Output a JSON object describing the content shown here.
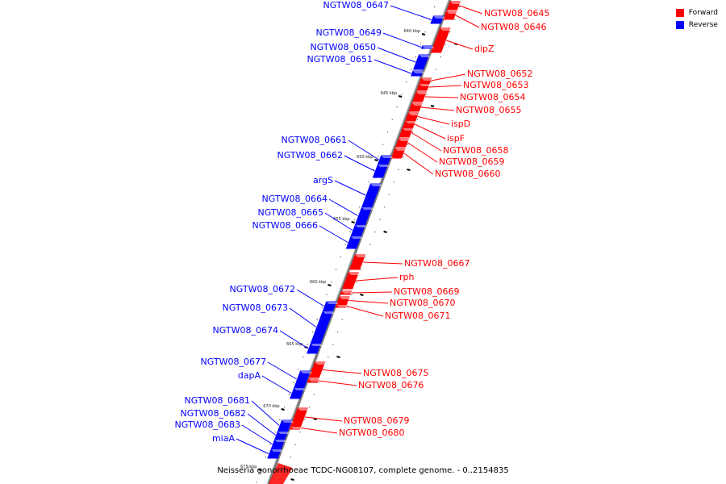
{
  "legend": [
    {
      "label": "Forward",
      "color": "#ff0000"
    },
    {
      "label": "Reverse",
      "color": "#0000ff"
    }
  ],
  "footer_text": "Neisseria gonorrhoeae TCDC-NG08107, complete genome. - 0..2154835",
  "axis_labels": [
    "640 kbp",
    "645 kbp",
    "650 kbp",
    "655 kbp",
    "660 kbp",
    "665 kbp",
    "670 kbp",
    "675 kbp"
  ],
  "genes_forward": [
    "NGTW08_0645",
    "NGTW08_0646",
    "dipZ",
    "NGTW08_0652",
    "NGTW08_0653",
    "NGTW08_0654",
    "NGTW08_0655",
    "ispD",
    "ispF",
    "NGTW08_0658",
    "NGTW08_0659",
    "NGTW08_0660",
    "NGTW08_0667",
    "rph",
    "NGTW08_0669",
    "NGTW08_0670",
    "NGTW08_0671",
    "NGTW08_0675",
    "NGTW08_0676",
    "NGTW08_0679",
    "NGTW08_0680"
  ],
  "genes_reverse": [
    "NGTW08_0647",
    "NGTW08_0649",
    "NGTW08_0650",
    "NGTW08_0651",
    "NGTW08_0661",
    "NGTW08_0662",
    "argS",
    "NGTW08_0664",
    "NGTW08_0665",
    "NGTW08_0666",
    "NGTW08_0672",
    "NGTW08_0673",
    "NGTW08_0674",
    "NGTW08_0677",
    "dapA",
    "NGTW08_0681",
    "NGTW08_0682",
    "NGTW08_0683",
    "miaA"
  ]
}
